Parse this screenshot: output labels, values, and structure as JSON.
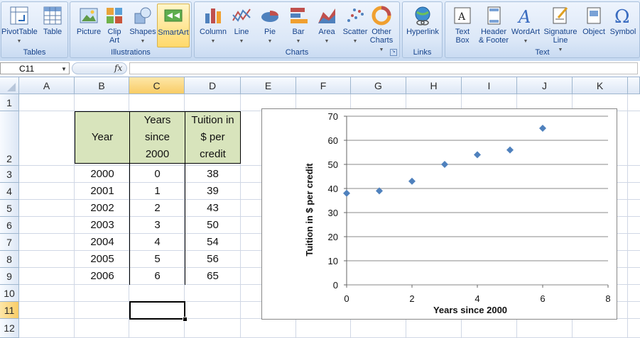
{
  "ribbon": {
    "groups": [
      {
        "label": "Tables",
        "buttons": [
          {
            "label": "PivotTable",
            "icon": "pivottable-icon"
          },
          {
            "label": "Table",
            "icon": "table-icon"
          }
        ]
      },
      {
        "label": "Illustrations",
        "buttons": [
          {
            "label": "Picture",
            "icon": "picture-icon"
          },
          {
            "label": "Clip Art",
            "icon": "clipart-icon"
          },
          {
            "label": "Shapes",
            "icon": "shapes-icon"
          },
          {
            "label": "SmartArt",
            "icon": "smartart-icon"
          }
        ]
      },
      {
        "label": "Charts",
        "buttons": [
          {
            "label": "Column",
            "icon": "column-chart-icon"
          },
          {
            "label": "Line",
            "icon": "line-chart-icon"
          },
          {
            "label": "Pie",
            "icon": "pie-chart-icon"
          },
          {
            "label": "Bar",
            "icon": "bar-chart-icon"
          },
          {
            "label": "Area",
            "icon": "area-chart-icon"
          },
          {
            "label": "Scatter",
            "icon": "scatter-chart-icon"
          },
          {
            "label": "Other Charts",
            "icon": "other-charts-icon"
          }
        ]
      },
      {
        "label": "Links",
        "buttons": [
          {
            "label": "Hyperlink",
            "icon": "hyperlink-icon"
          }
        ]
      },
      {
        "label": "Text",
        "buttons": [
          {
            "label": "Text Box",
            "icon": "textbox-icon"
          },
          {
            "label": "Header & Footer",
            "icon": "header-footer-icon"
          },
          {
            "label": "WordArt",
            "icon": "wordart-icon"
          },
          {
            "label": "Signature Line",
            "icon": "signature-icon"
          },
          {
            "label": "Object",
            "icon": "object-icon"
          },
          {
            "label": "Symbol",
            "icon": "symbol-icon"
          }
        ]
      }
    ]
  },
  "formula_bar": {
    "name_box": "C11",
    "fx_label": "fx",
    "value": ""
  },
  "sheet": {
    "columns": [
      "A",
      "B",
      "C",
      "D",
      "E",
      "F",
      "G",
      "H",
      "I",
      "J",
      "K"
    ],
    "rows": [
      "1",
      "2",
      "3",
      "4",
      "5",
      "6",
      "7",
      "8",
      "9",
      "10",
      "11",
      "12"
    ],
    "selected_column": "C",
    "selected_row": "11",
    "table_headers": {
      "year": "Year",
      "years_since_l1": "Years",
      "years_since_l2": "since",
      "years_since_l3": "2000",
      "tuition_l1": "Tuition in",
      "tuition_l2": "$ per",
      "tuition_l3": "credit"
    },
    "table_rows": [
      {
        "year": "2000",
        "years_since": "0",
        "tuition": "38"
      },
      {
        "year": "2001",
        "years_since": "1",
        "tuition": "39"
      },
      {
        "year": "2002",
        "years_since": "2",
        "tuition": "43"
      },
      {
        "year": "2003",
        "years_since": "3",
        "tuition": "50"
      },
      {
        "year": "2004",
        "years_since": "4",
        "tuition": "54"
      },
      {
        "year": "2005",
        "years_since": "5",
        "tuition": "56"
      },
      {
        "year": "2006",
        "years_since": "6",
        "tuition": "65"
      }
    ]
  },
  "chart_data": {
    "type": "scatter",
    "title": "",
    "xlabel": "Years since 2000",
    "ylabel": "Tuition in $ per credit",
    "xlim": [
      0,
      8
    ],
    "ylim": [
      0,
      70
    ],
    "xticks": [
      0,
      2,
      4,
      6,
      8
    ],
    "yticks": [
      0,
      10,
      20,
      30,
      40,
      50,
      60,
      70
    ],
    "grid": "horizontal",
    "marker": "diamond",
    "marker_color": "#4f81bd",
    "series": [
      {
        "x": [
          0,
          1,
          2,
          3,
          4,
          5,
          6
        ],
        "y": [
          38,
          39,
          43,
          50,
          54,
          56,
          65
        ]
      }
    ]
  }
}
